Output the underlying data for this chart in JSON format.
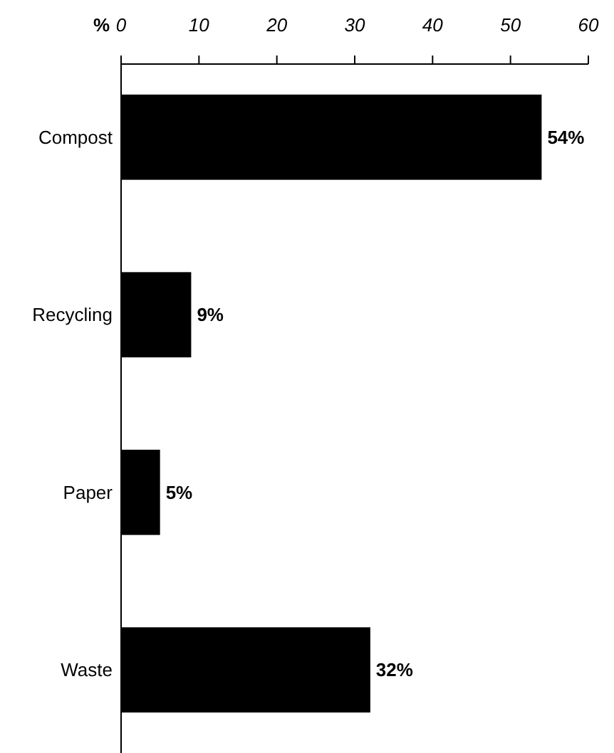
{
  "chart_data": {
    "type": "bar",
    "orientation": "horizontal",
    "xlabel": "%",
    "categories": [
      "Compost",
      "Recycling",
      "Paper",
      "Waste"
    ],
    "values": [
      54,
      9,
      5,
      32
    ],
    "color": "#000000",
    "value_labels": [
      "54%",
      "9%",
      "5%",
      "32%"
    ],
    "xlim": [
      0,
      60
    ],
    "xticks": [
      0,
      10,
      20,
      30,
      40,
      50,
      60
    ],
    "grid": false
  }
}
